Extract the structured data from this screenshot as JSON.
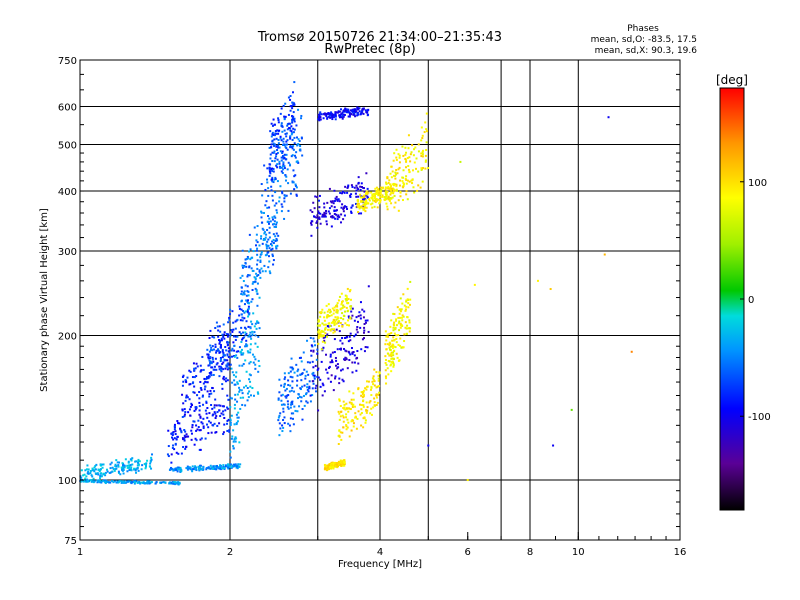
{
  "chart_data": {
    "type": "scatter",
    "title": "Tromsø 20150726 21:34:00–21:35:43",
    "subtitle": "RwPretec (8p)",
    "xlabel": "Frequency [MHz]",
    "ylabel": "Stationary phase Virtual Height [km]",
    "x_scale": "log",
    "y_scale": "log",
    "xlim": [
      1,
      16
    ],
    "ylim": [
      75,
      750
    ],
    "x_ticks": [
      1,
      2,
      4,
      6,
      8,
      10,
      16
    ],
    "x_tick_labels": [
      "1",
      "2",
      "4",
      "6",
      "8",
      "10",
      "16"
    ],
    "x_grid": [
      2,
      3,
      4,
      5,
      7,
      8,
      10
    ],
    "y_ticks": [
      75,
      100,
      200,
      300,
      400,
      500,
      600,
      750
    ],
    "y_tick_labels": [
      "75",
      "100",
      "200",
      "300",
      "400",
      "500",
      "600",
      "750"
    ],
    "grid": true,
    "phase_stats": {
      "heading": "Phases",
      "o_line": "mean, sd,O: -83.5, 17.5",
      "x_line": "mean, sd,X:  90.3, 19.6"
    },
    "colorbar": {
      "label": "[deg]",
      "range": [
        -180,
        180
      ],
      "ticks": [
        100,
        0,
        -100
      ],
      "tick_labels": [
        "100",
        "0",
        "-100"
      ]
    },
    "series": [
      {
        "x": [
          1.0,
          1.4
        ],
        "y": [
          100,
          112
        ],
        "phase": -35
      },
      {
        "x": [
          1.0,
          1.6
        ],
        "y": [
          100,
          98
        ],
        "phase": -40
      },
      {
        "x": [
          1.5,
          2.1
        ],
        "y": [
          104,
          108
        ],
        "phase": -45
      },
      {
        "x": [
          1.5,
          2.0
        ],
        "y": [
          110,
          150
        ],
        "phase": -90
      },
      {
        "x": [
          1.6,
          2.0
        ],
        "y": [
          130,
          200
        ],
        "phase": -85
      },
      {
        "x": [
          1.8,
          2.2
        ],
        "y": [
          160,
          240
        ],
        "phase": -75
      },
      {
        "x": [
          2.0,
          2.3
        ],
        "y": [
          110,
          260
        ],
        "phase": -40
      },
      {
        "x": [
          2.1,
          2.5
        ],
        "y": [
          220,
          380
        ],
        "phase": -55
      },
      {
        "x": [
          2.3,
          2.8
        ],
        "y": [
          300,
          600
        ],
        "phase": -60
      },
      {
        "x": [
          2.4,
          2.7
        ],
        "y": [
          420,
          650
        ],
        "phase": -75
      },
      {
        "x": [
          2.5,
          3.0
        ],
        "y": [
          120,
          200
        ],
        "phase": -60
      },
      {
        "x": [
          2.9,
          3.8
        ],
        "y": [
          330,
          430
        ],
        "phase": -105
      },
      {
        "x": [
          2.9,
          3.8
        ],
        "y": [
          140,
          240
        ],
        "phase": -110
      },
      {
        "x": [
          3.0,
          3.5
        ],
        "y": [
          190,
          250
        ],
        "phase": 85
      },
      {
        "x": [
          3.1,
          3.4
        ],
        "y": [
          105,
          110
        ],
        "phase": 95
      },
      {
        "x": [
          3.3,
          4.0
        ],
        "y": [
          120,
          170
        ],
        "phase": 95
      },
      {
        "x": [
          3.6,
          4.3
        ],
        "y": [
          360,
          420
        ],
        "phase": 90
      },
      {
        "x": [
          4.1,
          4.6
        ],
        "y": [
          160,
          250
        ],
        "phase": 85
      },
      {
        "x": [
          4.1,
          5.0
        ],
        "y": [
          350,
          560
        ],
        "phase": 90
      },
      {
        "x": [
          3.0,
          3.8
        ],
        "y": [
          560,
          600
        ],
        "phase": -95
      }
    ],
    "sparse_points": [
      {
        "x": 11.5,
        "y": 570,
        "phase": -100
      },
      {
        "x": 8.3,
        "y": 260,
        "phase": 90
      },
      {
        "x": 8.8,
        "y": 250,
        "phase": 110
      },
      {
        "x": 6.2,
        "y": 255,
        "phase": 90
      },
      {
        "x": 11.3,
        "y": 295,
        "phase": 120
      },
      {
        "x": 12.8,
        "y": 185,
        "phase": 140
      },
      {
        "x": 9.7,
        "y": 140,
        "phase": 30
      },
      {
        "x": 8.9,
        "y": 118,
        "phase": -100
      },
      {
        "x": 5.0,
        "y": 118,
        "phase": -100
      },
      {
        "x": 5.8,
        "y": 460,
        "phase": 60
      },
      {
        "x": 6.0,
        "y": 100,
        "phase": 90
      }
    ]
  }
}
